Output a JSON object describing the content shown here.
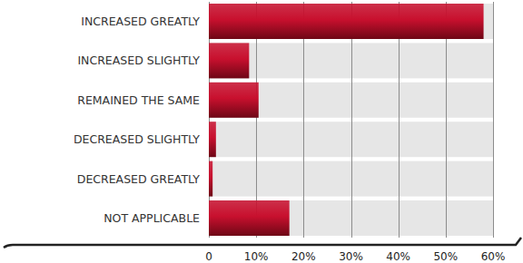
{
  "chart_data": {
    "type": "bar",
    "orientation": "horizontal",
    "categories": [
      "INCREASED GREATLY",
      "INCREASED SLIGHTLY",
      "REMAINED THE SAME",
      "DECREASED SLIGHTLY",
      "DECREASED GREATLY",
      "NOT APPLICABLE"
    ],
    "values": [
      58,
      8.5,
      10.5,
      1.5,
      0.8,
      17
    ],
    "color": "#c8102e",
    "xlim": [
      0,
      60
    ],
    "xticks": [
      0,
      {
        "value": 10,
        "label": "10%"
      },
      {
        "value": 20,
        "label": "20%"
      },
      {
        "value": 30,
        "label": "30%"
      },
      {
        "value": 40,
        "label": "40%"
      },
      {
        "value": 50,
        "label": "50%"
      },
      {
        "value": 60,
        "label": "60%"
      }
    ],
    "grid": true
  }
}
